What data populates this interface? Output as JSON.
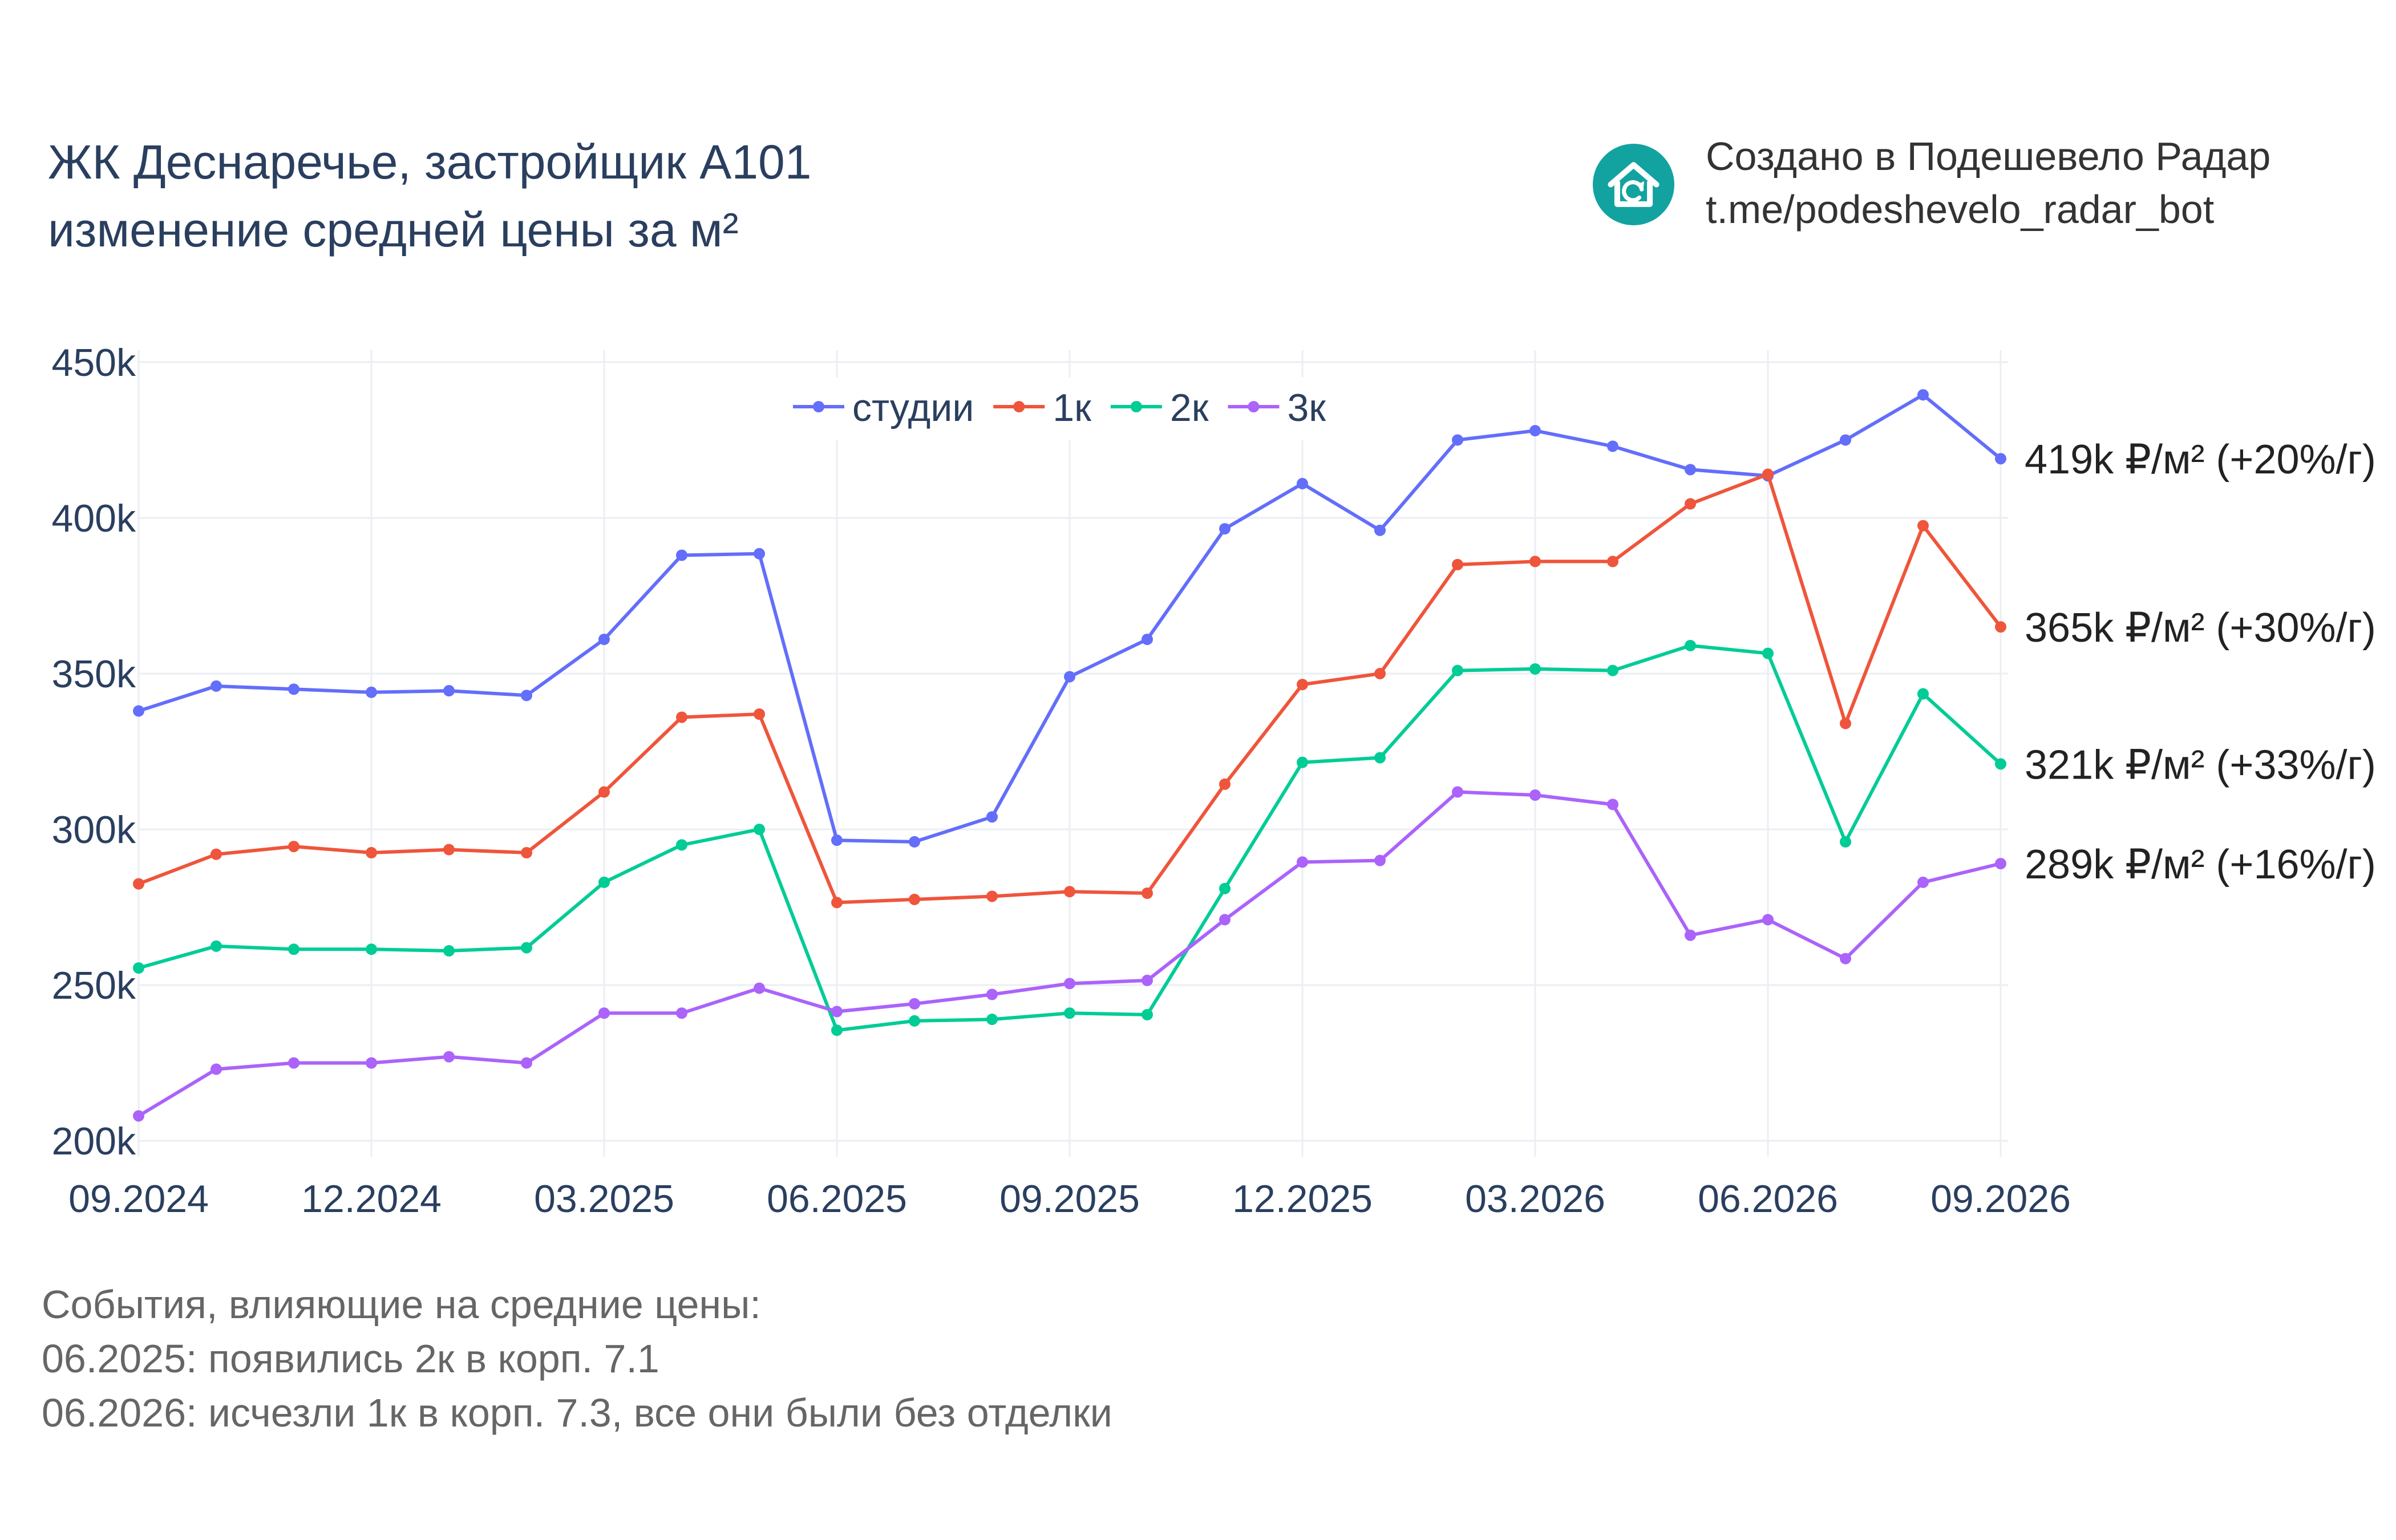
{
  "header": {
    "title_line1": "ЖК Деснаречье, застройщик А101",
    "title_line2": "изменение средней цены за м²"
  },
  "brand": {
    "line1": "Создано в Подешевело Радар",
    "line2": "t.me/podeshevelo_radar_bot",
    "logo_icon": "house-refresh-icon",
    "logo_color": "#12a3a1"
  },
  "notes": {
    "heading": "События, влияющие на средние цены:",
    "items": [
      "06.2025: появились 2к в корп. 7.1",
      "06.2026: исчезли 1к в корп. 7.3, все они были без отделки"
    ]
  },
  "chart_data": {
    "type": "line",
    "x": [
      "09.2024",
      "10.2024",
      "11.2024",
      "12.2024",
      "01.2025",
      "02.2025",
      "03.2025",
      "04.2025",
      "05.2025",
      "06.2025",
      "07.2025",
      "08.2025",
      "09.2025",
      "10.2025",
      "11.2025",
      "12.2025",
      "01.2026",
      "02.2026",
      "03.2026",
      "04.2026",
      "05.2026",
      "06.2026",
      "07.2026",
      "08.2026",
      "09.2026"
    ],
    "x_tick_labels": [
      "09.2024",
      "12.2024",
      "03.2025",
      "06.2025",
      "09.2025",
      "12.2025",
      "03.2026",
      "06.2026",
      "09.2026"
    ],
    "y_tick_labels": [
      "200k",
      "250k",
      "300k",
      "350k",
      "400k",
      "450k"
    ],
    "y_ticks": [
      200000,
      250000,
      300000,
      350000,
      400000,
      450000
    ],
    "ylim": [
      196000,
      452000
    ],
    "grid": true,
    "legend_position": "top-center",
    "series": [
      {
        "name": "студии",
        "color": "#636efa",
        "end_label": "419k ₽/м² (+20%/г)",
        "values": [
          338000,
          346000,
          345000,
          344000,
          344500,
          343000,
          361000,
          388000,
          388500,
          296500,
          296000,
          304000,
          349000,
          361000,
          396500,
          411000,
          396000,
          425000,
          428000,
          423000,
          415500,
          413500,
          425000,
          439500,
          419000
        ]
      },
      {
        "name": "1к",
        "color": "#ef553b",
        "end_label": "365k ₽/м² (+30%/г)",
        "values": [
          282500,
          292000,
          294500,
          292500,
          293500,
          292500,
          312000,
          336000,
          337000,
          276500,
          277500,
          278500,
          280000,
          279500,
          314500,
          346500,
          350000,
          385000,
          386000,
          386000,
          404500,
          414000,
          334000,
          397500,
          365000
        ]
      },
      {
        "name": "2к",
        "color": "#00cc96",
        "end_label": "321k ₽/м² (+33%/г)",
        "values": [
          255500,
          262500,
          261500,
          261500,
          261000,
          262000,
          283000,
          295000,
          300000,
          235500,
          238500,
          239000,
          241000,
          240500,
          281000,
          321500,
          323000,
          351000,
          351500,
          351000,
          359000,
          356500,
          296000,
          343500,
          321000
        ]
      },
      {
        "name": "3к",
        "color": "#ab63fa",
        "end_label": "289k ₽/м² (+16%/г)",
        "values": [
          208000,
          223000,
          225000,
          225000,
          227000,
          225000,
          241000,
          241000,
          249000,
          241500,
          244000,
          247000,
          250500,
          251500,
          271000,
          289500,
          290000,
          312000,
          311000,
          308000,
          266000,
          271000,
          258500,
          283000,
          289000
        ]
      }
    ]
  }
}
